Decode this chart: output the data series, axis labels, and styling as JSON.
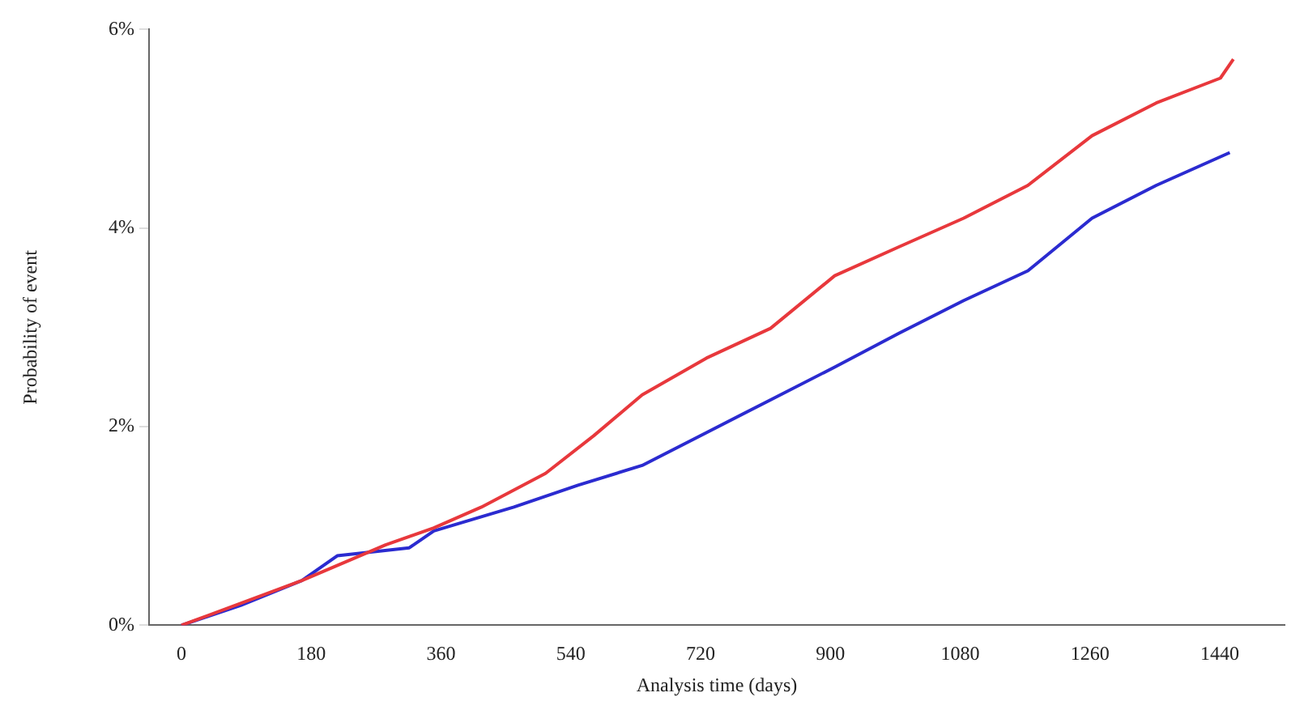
{
  "chart_data": {
    "type": "line",
    "xlabel": "Analysis time (days)",
    "ylabel": "Probability of event",
    "xlim": [
      -45,
      1530
    ],
    "xticks": [
      0,
      180,
      360,
      540,
      720,
      900,
      1080,
      1260,
      1440
    ],
    "ylim": [
      0,
      6
    ],
    "yticks": [
      {
        "value": 0,
        "label": "0%"
      },
      {
        "value": 2,
        "label": "2%"
      },
      {
        "value": 4,
        "label": "4%"
      },
      {
        "value": 6,
        "label": "6%"
      }
    ],
    "grid": false,
    "legend": false,
    "marker": "none",
    "line_style": "solid",
    "series": [
      {
        "color": "#e8383c",
        "x": [
          0,
          167,
          283,
          350,
          416,
          505,
          572,
          639,
          728,
          817,
          906,
          995,
          1085,
          1174,
          1263,
          1352,
          1441,
          1459
        ],
        "values": [
          0,
          0.45,
          0.81,
          0.98,
          1.19,
          1.53,
          1.91,
          2.32,
          2.69,
          2.99,
          3.52,
          3.81,
          4.1,
          4.43,
          4.93,
          5.26,
          5.51,
          5.7
        ]
      },
      {
        "color": "#2b2bd0",
        "x": [
          0,
          82,
          167,
          216,
          316,
          350,
          461,
          550,
          639,
          728,
          817,
          906,
          995,
          1085,
          1174,
          1263,
          1352,
          1454
        ],
        "values": [
          0,
          0.2,
          0.45,
          0.7,
          0.78,
          0.95,
          1.19,
          1.41,
          1.61,
          1.94,
          2.27,
          2.6,
          2.94,
          3.27,
          3.57,
          4.1,
          4.43,
          4.76
        ]
      }
    ]
  }
}
